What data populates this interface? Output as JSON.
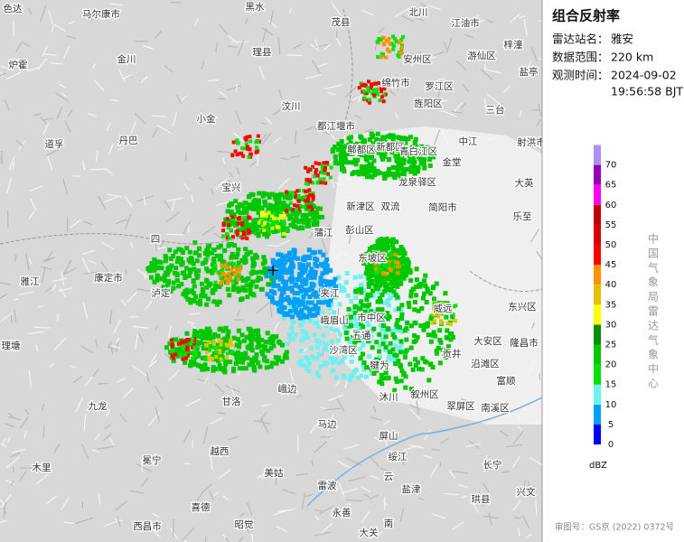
{
  "panel": {
    "title": "组合反射率",
    "fields": [
      {
        "label": "雷达站名：",
        "value": [
          "雅安"
        ]
      },
      {
        "label": "数据范围：",
        "value": [
          "220 km"
        ]
      },
      {
        "label": "观测时间：",
        "value": [
          "2024-09-02",
          "19:56:58 BJT"
        ]
      }
    ],
    "legend": {
      "ticks": [
        0,
        5,
        10,
        15,
        20,
        25,
        30,
        35,
        40,
        45,
        50,
        55,
        60,
        65,
        70
      ],
      "colors": [
        "#0000f6",
        "#01a0f6",
        "#6ff0f0",
        "#00e400",
        "#00c800",
        "#009000",
        "#ffff00",
        "#e7c000",
        "#ff9000",
        "#ff0000",
        "#d60000",
        "#c00000",
        "#ff00f0",
        "#9600b4",
        "#ad90f0"
      ],
      "unit": "dBZ"
    },
    "org": "中国气象局雷达气象中心",
    "approval": "审图号：GS京 (2022) 0372号"
  },
  "map": {
    "labels": [
      "色达",
      "马尔康市",
      "黑水",
      "茂县",
      "北川",
      "江油市",
      "梓潼",
      "金川",
      "理县",
      "安州区",
      "游仙区",
      "炉霍",
      "绵竹市",
      "罗江区",
      "盐亭",
      "汶川",
      "旌阳区",
      "三台",
      "小金",
      "都江堰市",
      "丹巴",
      "中江",
      "射洪市",
      "道孚",
      "郫都区",
      "新都区",
      "青白江区",
      "金堂",
      "宝兴",
      "龙泉驿区",
      "大英",
      "新津区",
      "简阳市",
      "双流",
      "乐至",
      "四",
      "蒲江",
      "彭山区",
      "雅江",
      "康定市",
      "泸定",
      "东坡区",
      "夹江",
      "市中区",
      "威远",
      "东兴区",
      "峨眉山",
      "五通",
      "大安区",
      "隆昌市",
      "理塘",
      "沙湾区",
      "贡井",
      "沿滩区",
      "犍为",
      "富顺",
      "甘洛",
      "峨边",
      "沐川",
      "叙州区",
      "南溪区",
      "九龙",
      "翠屏区",
      "马边",
      "屏山",
      "越西",
      "冕宁",
      "绥江",
      "长宁",
      "木里",
      "美姑",
      "云",
      "雷波",
      "盐津",
      "兴文",
      "喜德",
      "永善",
      "珙县",
      "南",
      "西昌市",
      "昭觉",
      "大关"
    ]
  }
}
